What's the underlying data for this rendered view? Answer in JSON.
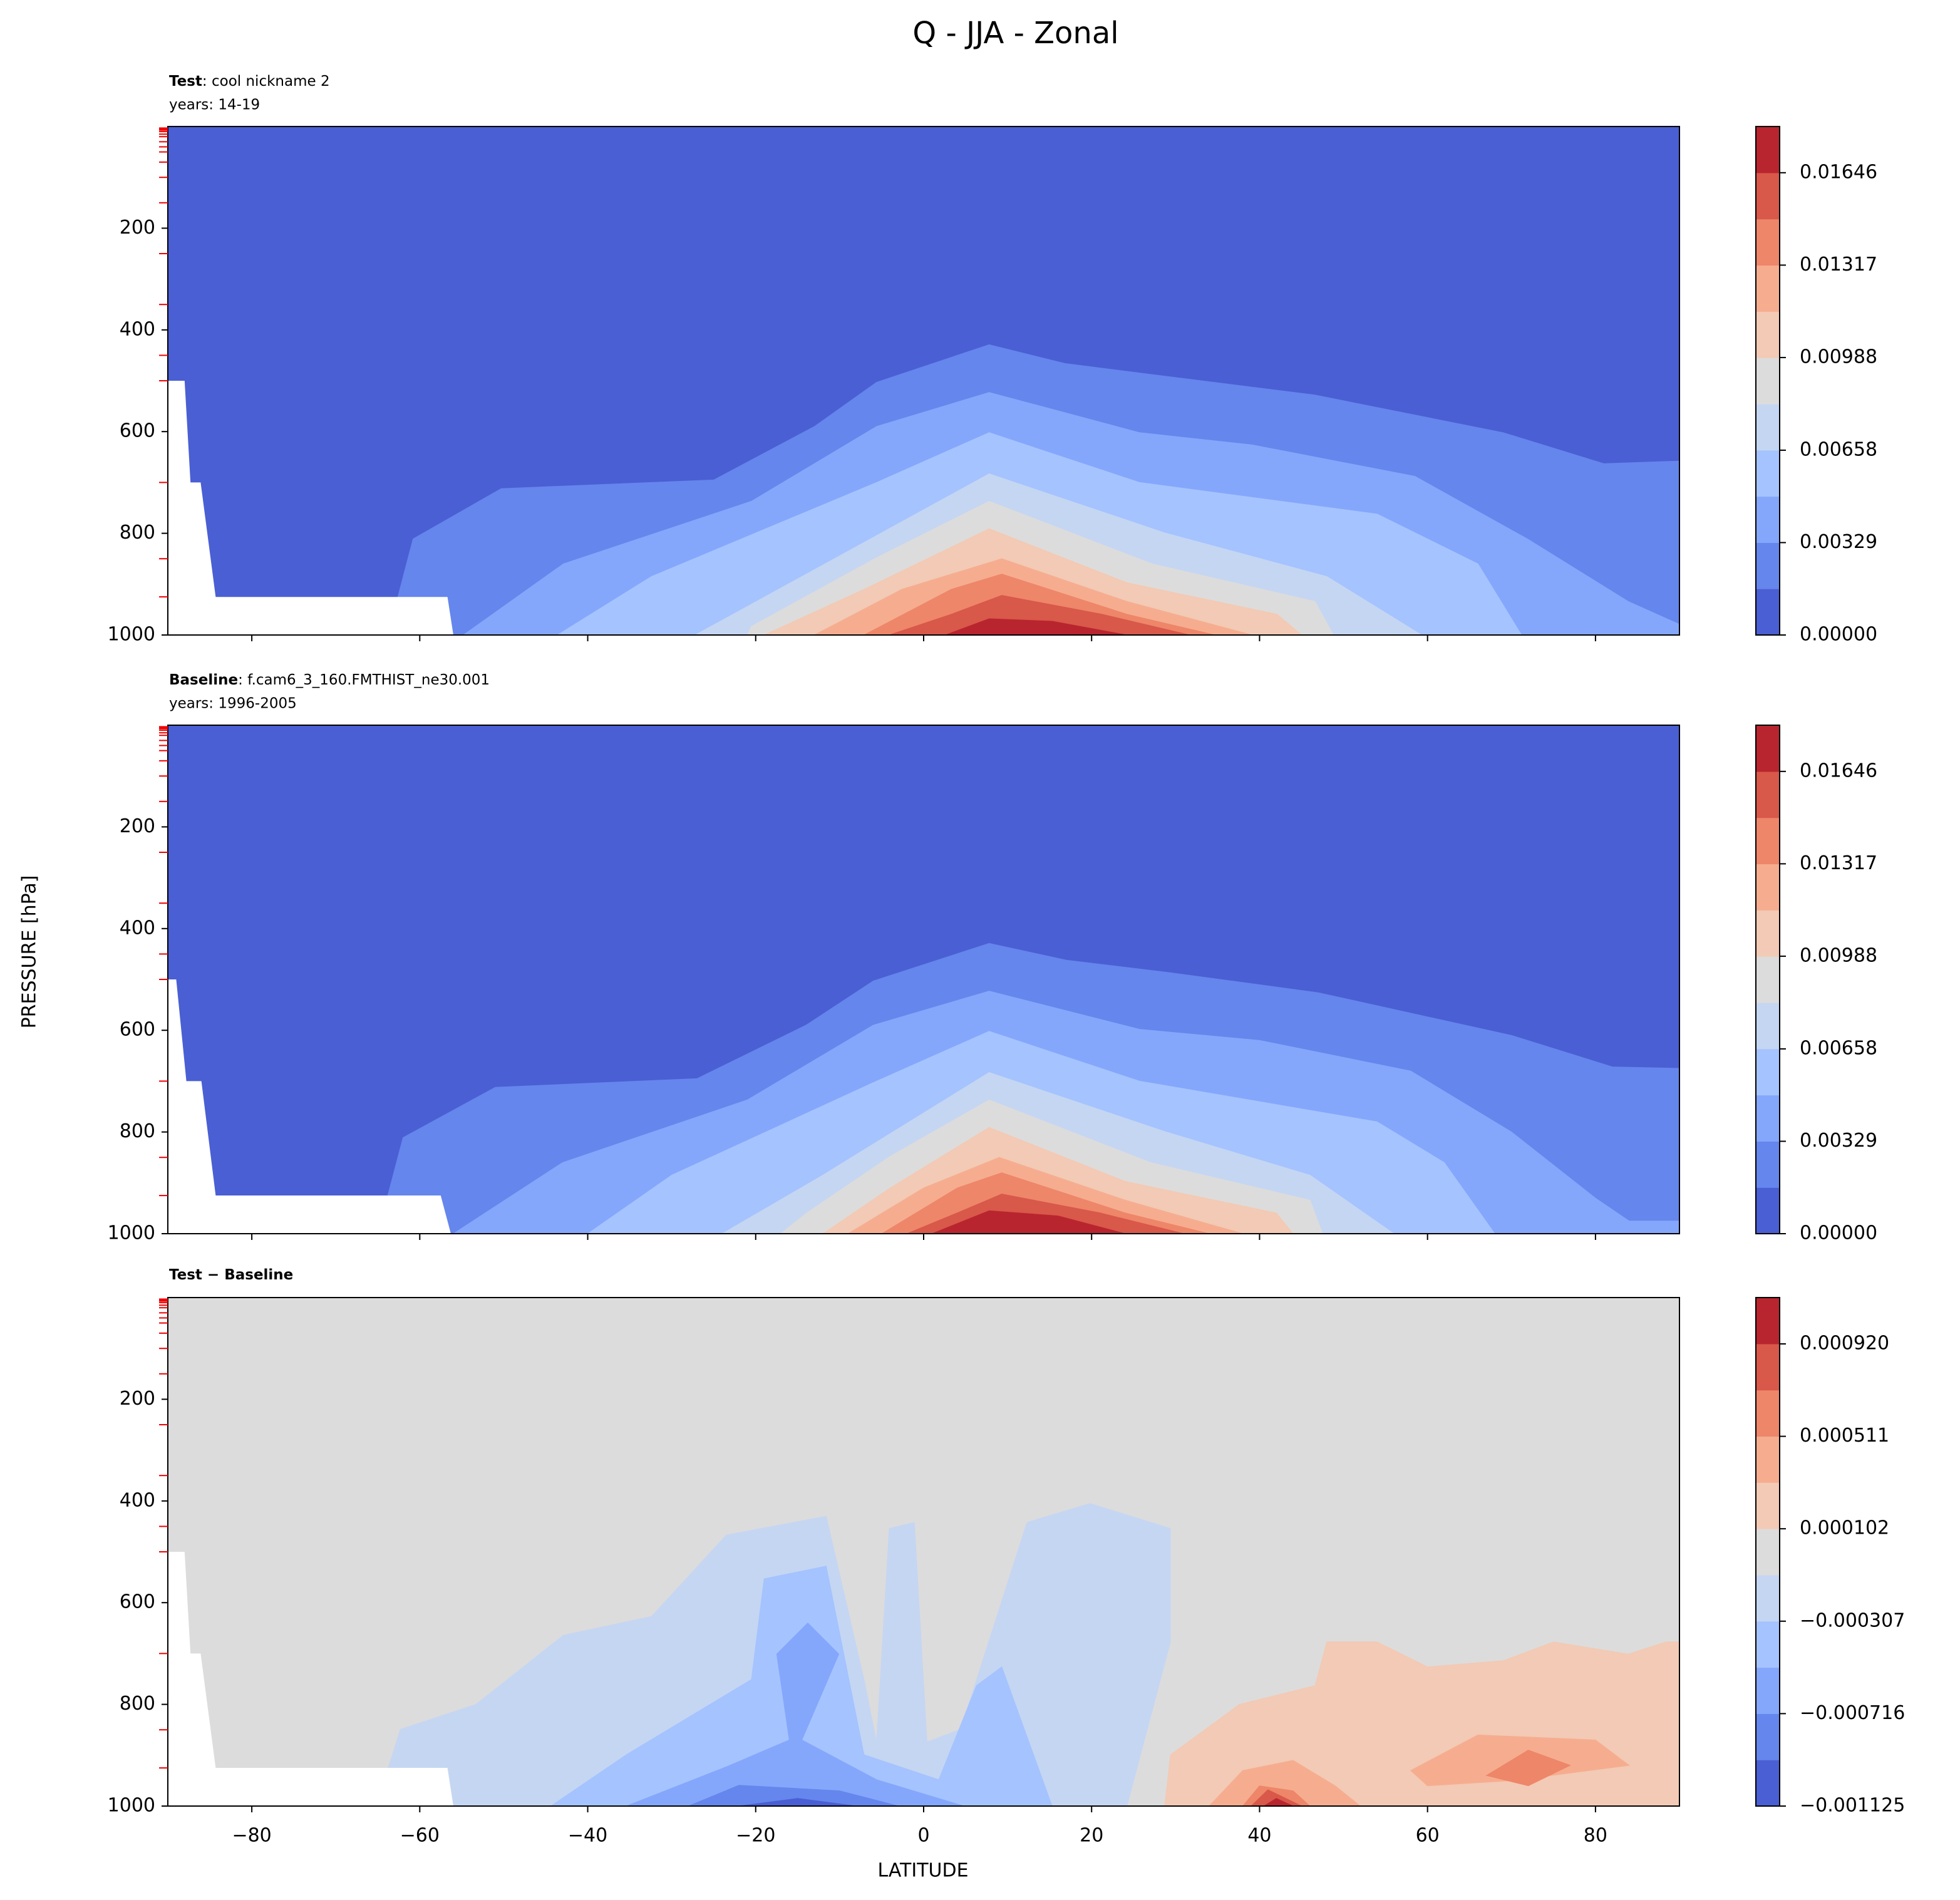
{
  "chart_data": {
    "type": "contour",
    "title": "Q - JJA - Zonal",
    "xlabel": "LATITUDE",
    "ylabel": "PRESSURE [hPa]",
    "xlim": [
      -90,
      90
    ],
    "xticks": [
      {
        "value": -80,
        "label": "−80"
      },
      {
        "value": -60,
        "label": "−60"
      },
      {
        "value": -40,
        "label": "−40"
      },
      {
        "value": -20,
        "label": "−20"
      },
      0,
      20,
      40,
      60,
      80
    ],
    "ylim": [
      1000,
      0
    ],
    "yticks": [
      200,
      400,
      600,
      800,
      1000
    ],
    "level_ticks": [
      3,
      5,
      7,
      10,
      15,
      20,
      30,
      40,
      50,
      70,
      100,
      150,
      250,
      350,
      450,
      500,
      700,
      850,
      925
    ],
    "panels": [
      {
        "title": "Test",
        "subtitle": ": cool nickname 2",
        "years": "years: 14-19",
        "colorbar": {
          "lim": [
            0,
            0.018106
          ],
          "colors": [
            "#4a5fd3",
            "#6586ec",
            "#84a7fc",
            "#a5c3fe",
            "#c5d6f2",
            "#dddcdc",
            "#f2cab5",
            "#f6ad8f",
            "#ee8669",
            "#d8584a",
            "#b9252f"
          ],
          "ticks": [
            {
              "value": 0,
              "label": "0.00000"
            },
            {
              "value": 0.00329,
              "label": "0.00329"
            },
            {
              "value": 0.00658,
              "label": "0.00658"
            },
            {
              "value": 0.00988,
              "label": "0.00988"
            },
            {
              "value": 0.01317,
              "label": "0.01317"
            },
            {
              "value": 0.01646,
              "label": "0.01646"
            }
          ]
        },
        "contours": [
          {
            "level": 0,
            "lat": [
              -90,
              90,
              90,
              -90
            ],
            "p": [
              0,
              0,
              1000,
              1000
            ]
          },
          {
            "level": 0.001646,
            "lat": [
              -63.8,
              -60.8,
              -50.3,
              -25,
              -13,
              -5.6,
              7.8,
              16.8,
              28.7,
              46.6,
              69,
              81,
              90,
              90
            ],
            "p": [
              1000,
              811,
              712,
              695,
              590,
              503,
              429,
              466,
              491,
              528,
              602,
              663,
              658,
              1000
            ]
          },
          {
            "level": 0.003292,
            "lat": [
              -54.8,
              -42.9,
              -20.5,
              -5.6,
              7.8,
              25.7,
              39.1,
              58.5,
              71.9,
              83.9,
              90,
              90
            ],
            "p": [
              1000,
              860,
              737,
              590,
              523,
              602,
              626,
              688,
              811,
              934,
              979,
              1000
            ]
          },
          {
            "level": 0.004938,
            "lat": [
              -43.6,
              -32.4,
              -5.6,
              7.8,
              25.7,
              54,
              66,
              71.2
            ],
            "p": [
              1000,
              885,
              700,
              602,
              700,
              762,
              860,
              1000
            ]
          },
          {
            "level": 0.006584,
            "lat": [
              -27.2,
              -14.5,
              7.8,
              28.7,
              48,
              59.3
            ],
            "p": [
              1000,
              885,
              683,
              799,
              885,
              1000
            ]
          },
          {
            "level": 0.00823,
            "lat": [
              -21,
              -20.5,
              -5.6,
              7.8,
              27.2,
              46.6,
              48.8
            ],
            "p": [
              1000,
              983,
              848,
              737,
              860,
              934,
              1000
            ]
          },
          {
            "level": 0.009876,
            "lat": [
              -19,
              -7.1,
              7.8,
              24.2,
              42.1,
              45
            ],
            "p": [
              1000,
              910,
              791,
              897,
              959,
              1000
            ]
          },
          {
            "level": 0.011522,
            "lat": [
              -13,
              -2.6,
              9.3,
              24.2,
              39.1
            ],
            "p": [
              1000,
              910,
              850,
              934,
              1000
            ]
          },
          {
            "level": 0.013168,
            "lat": [
              -7.1,
              3.3,
              9.3,
              24.2,
              34.7
            ],
            "p": [
              1000,
              910,
              880,
              959,
              1000
            ]
          },
          {
            "level": 0.014814,
            "lat": [
              -4.1,
              3.3,
              9.3,
              21.2,
              31.7
            ],
            "p": [
              1000,
              959,
              922,
              959,
              1000
            ]
          },
          {
            "level": 0.01646,
            "lat": [
              2.6,
              7.8,
              15.3,
              24.2
            ],
            "p": [
              1000,
              968,
              973,
              1000
            ]
          }
        ],
        "missing": {
          "lat": [
            -90,
            -90,
            -88,
            -87.3,
            -86.1,
            -84.3,
            -56.7,
            -56
          ],
          "p": [
            1000,
            500,
            500,
            700,
            700,
            925,
            925,
            1000
          ]
        }
      },
      {
        "title": "Baseline",
        "subtitle": ": f.cam6_3_160.FMTHIST_ne30.001",
        "years": "years: 1996-2005",
        "colorbar": {
          "lim": [
            0,
            0.018106
          ],
          "colors": [
            "#4a5fd3",
            "#6586ec",
            "#84a7fc",
            "#a5c3fe",
            "#c5d6f2",
            "#dddcdc",
            "#f2cab5",
            "#f6ad8f",
            "#ee8669",
            "#d8584a",
            "#b9252f"
          ],
          "ticks": [
            {
              "value": 0,
              "label": "0.00000"
            },
            {
              "value": 0.00329,
              "label": "0.00329"
            },
            {
              "value": 0.00658,
              "label": "0.00658"
            },
            {
              "value": 0.00988,
              "label": "0.00988"
            },
            {
              "value": 0.01317,
              "label": "0.01317"
            },
            {
              "value": 0.01646,
              "label": "0.01646"
            }
          ]
        },
        "contours": [
          {
            "level": 0,
            "lat": [
              -90,
              90,
              90,
              -90
            ],
            "p": [
              0,
              0,
              1000,
              1000
            ]
          },
          {
            "level": 0.001646,
            "lat": [
              -65,
              -62,
              -51,
              -27,
              -14,
              -6,
              7.8,
              17,
              29,
              47,
              70,
              82,
              90,
              90
            ],
            "p": [
              1000,
              811,
              712,
              695,
              590,
              503,
              429,
              462,
              486,
              526,
              610,
              672,
              675,
              1000
            ]
          },
          {
            "level": 0.003292,
            "lat": [
              -56,
              -43,
              -21,
              -6,
              7.8,
              25.7,
              40,
              58,
              70,
              80,
              84,
              90,
              90
            ],
            "p": [
              1000,
              860,
              737,
              590,
              523,
              598,
              620,
              680,
              800,
              930,
              975,
              975,
              1000
            ]
          },
          {
            "level": 0.004938,
            "lat": [
              -40,
              -30,
              -5.6,
              7.8,
              25.7,
              54,
              62,
              68
            ],
            "p": [
              1000,
              885,
              700,
              602,
              700,
              780,
              860,
              1000
            ]
          },
          {
            "level": 0.006584,
            "lat": [
              -24,
              -12,
              7.8,
              28.7,
              46,
              56
            ],
            "p": [
              1000,
              885,
              683,
              799,
              885,
              1000
            ]
          },
          {
            "level": 0.00823,
            "lat": [
              -17,
              -14,
              -4,
              7.8,
              27,
              46,
              47.5
            ],
            "p": [
              1000,
              960,
              848,
              737,
              860,
              934,
              1000
            ]
          },
          {
            "level": 0.009876,
            "lat": [
              -12,
              -4,
              7.8,
              24,
              42,
              44
            ],
            "p": [
              1000,
              910,
              791,
              897,
              959,
              1000
            ]
          },
          {
            "level": 0.011522,
            "lat": [
              -9,
              0,
              9,
              24,
              38
            ],
            "p": [
              1000,
              910,
              850,
              934,
              1000
            ]
          },
          {
            "level": 0.013168,
            "lat": [
              -5,
              4,
              9.3,
              24,
              34
            ],
            "p": [
              1000,
              910,
              880,
              959,
              1000
            ]
          },
          {
            "level": 0.014814,
            "lat": [
              -2,
              4,
              9.3,
              21,
              31
            ],
            "p": [
              1000,
              959,
              922,
              959,
              1000
            ]
          },
          {
            "level": 0.01646,
            "lat": [
              1,
              7.8,
              16,
              24
            ],
            "p": [
              1000,
              955,
              965,
              1000
            ]
          }
        ],
        "missing": {
          "lat": [
            -90,
            -90,
            -89,
            -87.8,
            -86,
            -84.3,
            -57.5,
            -56.3
          ],
          "p": [
            1000,
            500,
            500,
            700,
            700,
            925,
            925,
            1000
          ]
        }
      },
      {
        "title": "Test − Baseline",
        "colorbar": {
          "lim": [
            -0.001125,
            0.001125
          ],
          "colors": [
            "#4a5fd3",
            "#6586ec",
            "#84a7fc",
            "#a5c3fe",
            "#c5d6f2",
            "#dddcdc",
            "#f2cab5",
            "#f6ad8f",
            "#ee8669",
            "#d8584a",
            "#b9252f"
          ],
          "ticks": [
            {
              "value": -0.001125,
              "label": "−0.001125"
            },
            {
              "value": -0.000716,
              "label": "−0.000716"
            },
            {
              "value": -0.000307,
              "label": "−0.000307"
            },
            {
              "value": 0.000102,
              "label": "0.000102"
            },
            {
              "value": 0.000511,
              "label": "0.000511"
            },
            {
              "value": 0.00092,
              "label": "0.000920"
            }
          ]
        },
        "contours": [
          {
            "level": -0.000102,
            "lat": [
              -90,
              90,
              90,
              -90
            ],
            "p": [
              0,
              0,
              1000,
              1000
            ]
          },
          {
            "level": -0.000307,
            "lat": [
              -65.2,
              -62.3,
              -53.3,
              -42.9,
              -32.4,
              -23.5,
              -11.6,
              -7.1,
              -5.6,
              -4.1,
              -1.1,
              0.4,
              4.4,
              12.3,
              19.8,
              29.4,
              29.4,
              24.2
            ],
            "p": [
              1000,
              849,
              800,
              664,
              627,
              467,
              430,
              751,
              874,
              454,
              442,
              874,
              849,
              442,
              405,
              454,
              677,
              1000
            ]
          },
          {
            "level": -0.000511,
            "lat": [
              -44.4,
              -35.4,
              -20.5,
              -19,
              -11.6,
              -7.1,
              1.8,
              6.3,
              9.3,
              15.3
            ],
            "p": [
              1000,
              899,
              751,
              553,
              528,
              899,
              948,
              763,
              726,
              1000
            ]
          },
          {
            "level": -0.000716,
            "lat": [
              -35.4,
              -23.5,
              -16,
              -17.5,
              -13.8,
              -10.1,
              -14.5,
              -5.6,
              4.8
            ],
            "p": [
              1000,
              923,
              870,
              701,
              640,
              701,
              870,
              948,
              1000
            ]
          },
          {
            "level": -0.00092,
            "lat": [
              -28,
              -22,
              -10,
              -3
            ],
            "p": [
              1000,
              959,
              970,
              1000
            ]
          },
          {
            "level": -0.001125,
            "lat": [
              -22,
              -15,
              -8
            ],
            "p": [
              1000,
              985,
              1000
            ]
          },
          {
            "level": 0.000102,
            "lat": [
              28.7,
              29.4,
              37.6,
              46.6,
              48,
              54,
              60,
              69,
              75,
              83.9,
              88.4,
              90,
              90
            ],
            "p": [
              1000,
              899,
              800,
              763,
              677,
              677,
              726,
              714,
              677,
              701,
              677,
              677,
              1000
            ]
          },
          {
            "level": 0.000307,
            "lat": [
              34,
              38,
              44,
              49,
              52
            ],
            "p": [
              1000,
              930,
              910,
              960,
              1000
            ]
          },
          {
            "level": 0.000307,
            "lat": [
              58,
              66,
              80,
              84,
              70,
              60
            ],
            "p": [
              930,
              860,
              870,
              920,
              950,
              960
            ]
          },
          {
            "level": 0.000511,
            "lat": [
              38,
              40,
              44,
              46
            ],
            "p": [
              1000,
              960,
              970,
              1000
            ]
          },
          {
            "level": 0.000511,
            "lat": [
              67,
              72,
              77,
              72
            ],
            "p": [
              940,
              890,
              920,
              960
            ]
          },
          {
            "level": 0.000716,
            "lat": [
              39,
              41,
              45
            ],
            "p": [
              1000,
              968,
              1000
            ]
          },
          {
            "level": 0.00092,
            "lat": [
              40.5,
              42,
              44
            ],
            "p": [
              1000,
              985,
              1000
            ]
          }
        ],
        "missing": {
          "lat": [
            -90,
            -90,
            -88,
            -87.3,
            -86.1,
            -84.3,
            -56.7,
            -56
          ],
          "p": [
            1000,
            500,
            500,
            700,
            700,
            925,
            925,
            1000
          ]
        }
      }
    ]
  }
}
